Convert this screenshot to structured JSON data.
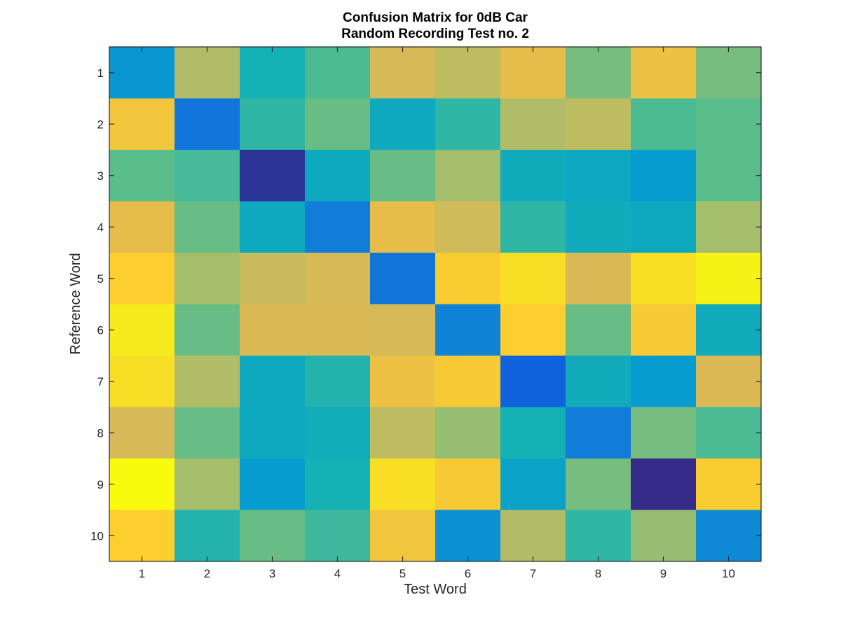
{
  "chart_data": {
    "type": "heatmap",
    "title": [
      "Confusion Matrix for 0dB Car",
      "Random Recording Test no. 2"
    ],
    "xlabel": "Test Word",
    "ylabel": "Reference Word",
    "x_categories": [
      "1",
      "2",
      "3",
      "4",
      "5",
      "6",
      "7",
      "8",
      "9",
      "10"
    ],
    "y_categories": [
      "1",
      "2",
      "3",
      "4",
      "5",
      "6",
      "7",
      "8",
      "9",
      "10"
    ],
    "colormap": "parula",
    "clim": [
      0,
      1
    ],
    "grid": false,
    "values": [
      [
        0.28,
        0.62,
        0.4,
        0.48,
        0.68,
        0.64,
        0.72,
        0.54,
        0.74,
        0.54
      ],
      [
        0.76,
        0.18,
        0.44,
        0.52,
        0.36,
        0.44,
        0.62,
        0.64,
        0.48,
        0.5
      ],
      [
        0.5,
        0.47,
        0.02,
        0.36,
        0.52,
        0.6,
        0.37,
        0.35,
        0.3,
        0.5
      ],
      [
        0.72,
        0.52,
        0.36,
        0.2,
        0.72,
        0.67,
        0.44,
        0.37,
        0.36,
        0.6
      ],
      [
        0.8,
        0.6,
        0.66,
        0.68,
        0.18,
        0.79,
        0.86,
        0.69,
        0.86,
        0.95
      ],
      [
        0.91,
        0.52,
        0.69,
        0.69,
        0.68,
        0.22,
        0.8,
        0.52,
        0.78,
        0.37
      ],
      [
        0.86,
        0.62,
        0.36,
        0.42,
        0.74,
        0.78,
        0.12,
        0.37,
        0.3,
        0.69
      ],
      [
        0.68,
        0.52,
        0.36,
        0.38,
        0.64,
        0.58,
        0.4,
        0.2,
        0.54,
        0.48
      ],
      [
        1.0,
        0.6,
        0.3,
        0.4,
        0.86,
        0.78,
        0.33,
        0.54,
        0.0,
        0.79
      ],
      [
        0.8,
        0.42,
        0.52,
        0.46,
        0.76,
        0.26,
        0.62,
        0.44,
        0.58,
        0.24
      ]
    ]
  }
}
